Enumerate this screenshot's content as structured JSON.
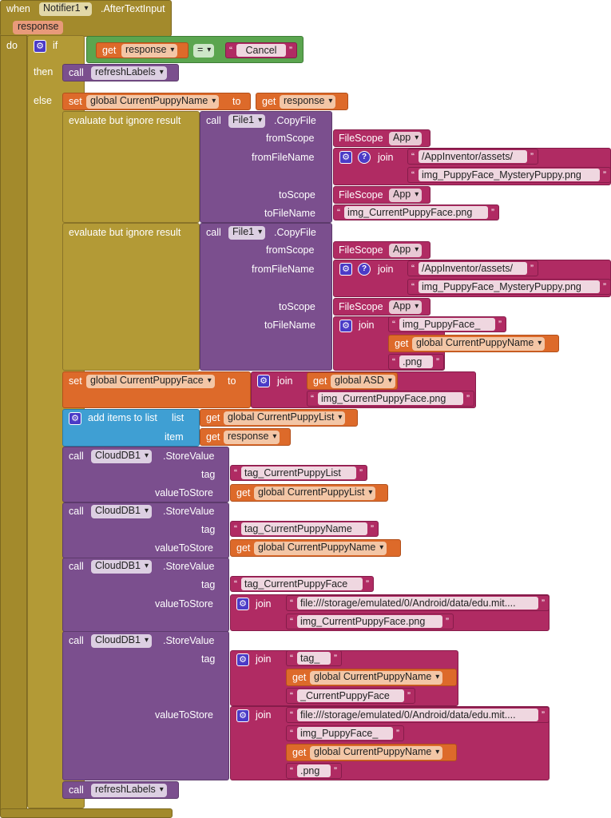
{
  "event": {
    "when": "when",
    "component": "Notifier1",
    "event": ".AfterTextInput",
    "param": "response",
    "do": "do"
  },
  "if_block": {
    "if": "if",
    "then": "then",
    "else": "else",
    "get": "get",
    "var": "response",
    "op": "=",
    "cancel": "Cancel"
  },
  "refresh": {
    "call": "call",
    "proc": "refreshLabels"
  },
  "set1": {
    "set": "set",
    "var": "global CurrentPuppyName",
    "to": "to",
    "get": "get",
    "value": "response"
  },
  "copy1": {
    "evaluate": "evaluate but ignore result",
    "call": "call",
    "component": "File1",
    "method": ".CopyFile",
    "fromScope": "fromScope",
    "fromFileName": "fromFileName",
    "toScope": "toScope",
    "toFileName": "toFileName",
    "filescope": "FileScope",
    "app": "App",
    "join": "join",
    "path": "/AppInventor/assets/",
    "mystery": "img_PuppyFace_MysteryPuppy.png",
    "dest": "img_CurrentPuppyFace.png"
  },
  "copy2": {
    "evaluate": "evaluate but ignore result",
    "call": "call",
    "component": "File1",
    "method": ".CopyFile",
    "fromScope": "fromScope",
    "fromFileName": "fromFileName",
    "toScope": "toScope",
    "toFileName": "toFileName",
    "filescope": "FileScope",
    "app": "App",
    "join": "join",
    "path": "/AppInventor/assets/",
    "mystery": "img_PuppyFace_MysteryPuppy.png",
    "prefix": "img_PuppyFace_",
    "get": "get",
    "var": "global CurrentPuppyName",
    "ext": ".png"
  },
  "set2": {
    "set": "set",
    "var": "global CurrentPuppyFace",
    "to": "to",
    "join": "join",
    "get": "get",
    "asd": "global ASD",
    "file": "img_CurrentPuppyFace.png"
  },
  "additems": {
    "label": "add items to list",
    "list": "list",
    "item": "item",
    "get": "get",
    "listvar": "global CurrentPuppyList",
    "itemvar": "response"
  },
  "store1": {
    "call": "call",
    "component": "CloudDB1",
    "method": ".StoreValue",
    "tag": "tag",
    "valueToStore": "valueToStore",
    "tagval": "tag_CurrentPuppyList",
    "get": "get",
    "var": "global CurrentPuppyList"
  },
  "store2": {
    "call": "call",
    "component": "CloudDB1",
    "method": ".StoreValue",
    "tag": "tag",
    "valueToStore": "valueToStore",
    "tagval": "tag_CurrentPuppyName",
    "get": "get",
    "var": "global CurrentPuppyName"
  },
  "store3": {
    "call": "call",
    "component": "CloudDB1",
    "method": ".StoreValue",
    "tag": "tag",
    "valueToStore": "valueToStore",
    "tagval": "tag_CurrentPuppyFace",
    "join": "join",
    "path": "file:///storage/emulated/0/Android/data/edu.mit....",
    "file": "img_CurrentPuppyFace.png"
  },
  "store4": {
    "call": "call",
    "component": "CloudDB1",
    "method": ".StoreValue",
    "tag": "tag",
    "valueToStore": "valueToStore",
    "join": "join",
    "tagprefix": "tag_",
    "get": "get",
    "var": "global CurrentPuppyName",
    "tagsuffix": "_CurrentPuppyFace",
    "path": "file:///storage/emulated/0/Android/data/edu.mit....",
    "imgprefix": "img_PuppyFace_",
    "ext": ".png"
  },
  "refresh2": {
    "call": "call",
    "proc": "refreshLabels"
  }
}
